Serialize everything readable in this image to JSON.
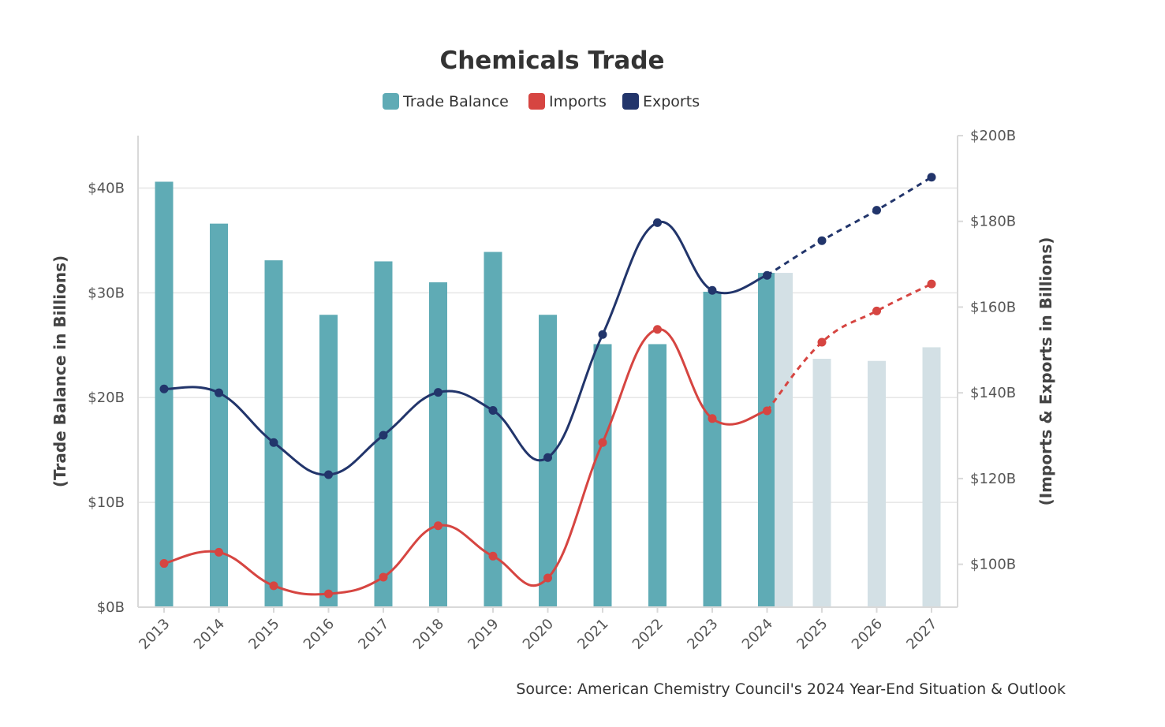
{
  "chart_data": {
    "type": "bar",
    "title": "Chemicals Trade",
    "source": "Source: American Chemistry Council's 2024 Year-End Situation & Outlook",
    "categories": [
      "2013",
      "2014",
      "2015",
      "2016",
      "2017",
      "2018",
      "2019",
      "2020",
      "2021",
      "2022",
      "2023",
      "2024",
      "2025",
      "2026",
      "2027"
    ],
    "forecast_start_index": 12,
    "left_axis": {
      "label": "(Trade Balance in Billions)",
      "range": [
        0,
        45
      ],
      "ticks": [
        0,
        10,
        20,
        30,
        40
      ],
      "tick_labels": [
        "$0B",
        "$10B",
        "$20B",
        "$30B",
        "$40B"
      ]
    },
    "right_axis": {
      "label": "(Imports & Exports in Billions)",
      "range": [
        90,
        200
      ],
      "ticks": [
        100,
        120,
        140,
        160,
        180,
        200
      ],
      "tick_labels": [
        "$100B",
        "$120B",
        "$140B",
        "$160B",
        "$180B",
        "$200B"
      ]
    },
    "series": [
      {
        "name": "Trade Balance",
        "type": "bar",
        "axis": "left",
        "color": "#5FABB5",
        "forecast_color": "#D3E0E5",
        "values": [
          40.6,
          36.6,
          33.1,
          27.9,
          33.0,
          31.0,
          33.9,
          27.9,
          25.1,
          25.1,
          30.1,
          31.9,
          23.7,
          23.5,
          24.8
        ],
        "forecast_overlay_2024": 31.9
      },
      {
        "name": "Imports",
        "type": "line",
        "axis": "right",
        "color": "#D64541",
        "values": [
          100.2,
          102.8,
          95.0,
          93.1,
          97.0,
          109.0,
          101.9,
          96.8,
          128.4,
          154.8,
          134.0,
          135.8,
          151.8,
          159.1,
          165.4
        ]
      },
      {
        "name": "Exports",
        "type": "line",
        "axis": "right",
        "color": "#22356B",
        "values": [
          140.9,
          140.0,
          128.4,
          120.9,
          130.1,
          140.1,
          135.9,
          124.9,
          153.6,
          179.7,
          163.9,
          167.4,
          175.5,
          182.6,
          190.3
        ]
      }
    ],
    "legend": {
      "position": "top-center",
      "items": [
        {
          "label": "Trade Balance",
          "color": "#5FABB5"
        },
        {
          "label": "Imports",
          "color": "#D64541"
        },
        {
          "label": "Exports",
          "color": "#22356B"
        }
      ]
    }
  }
}
